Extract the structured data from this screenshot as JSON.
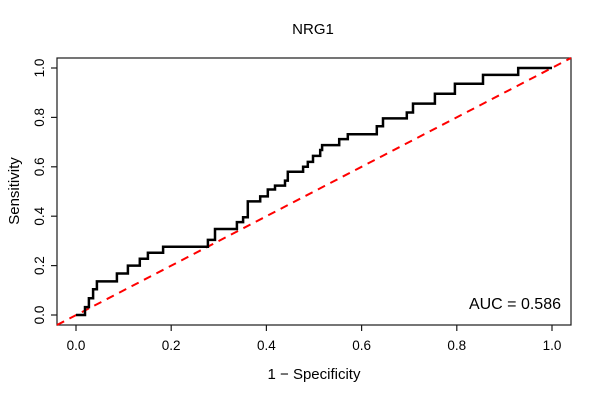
{
  "figure": {
    "background": "#ffffff",
    "frame_color": "#1a1a1a"
  },
  "chart_data": {
    "type": "line",
    "subtype": "roc-step-curve",
    "title": "NRG1",
    "xlabel": "1 − Specificity",
    "ylabel": "Sensitivity",
    "xlim": [
      0,
      1
    ],
    "ylim": [
      0,
      1
    ],
    "grid": false,
    "legend": null,
    "x_ticks": {
      "values": [
        0,
        0.2,
        0.4,
        0.6,
        0.8,
        1.0
      ],
      "labels": [
        "0.0",
        "0.2",
        "0.4",
        "0.6",
        "0.8",
        "1.0"
      ]
    },
    "y_ticks": {
      "values": [
        0,
        0.2,
        0.4,
        0.6,
        0.8,
        1.0
      ],
      "labels": [
        "0.0",
        "0.2",
        "0.4",
        "0.6",
        "0.8",
        "1.0"
      ],
      "rotated": true
    },
    "series": [
      {
        "name": "ROC curve",
        "color": "#000000",
        "stroke_width": 2.5,
        "style": "solid",
        "points": [
          [
            0.0,
            0.0
          ],
          [
            0.019,
            0.0
          ],
          [
            0.019,
            0.032
          ],
          [
            0.027,
            0.032
          ],
          [
            0.027,
            0.068
          ],
          [
            0.036,
            0.068
          ],
          [
            0.036,
            0.104
          ],
          [
            0.044,
            0.104
          ],
          [
            0.044,
            0.136
          ],
          [
            0.086,
            0.136
          ],
          [
            0.086,
            0.168
          ],
          [
            0.109,
            0.168
          ],
          [
            0.109,
            0.2
          ],
          [
            0.134,
            0.2
          ],
          [
            0.134,
            0.228
          ],
          [
            0.151,
            0.228
          ],
          [
            0.151,
            0.252
          ],
          [
            0.183,
            0.252
          ],
          [
            0.183,
            0.276
          ],
          [
            0.277,
            0.276
          ],
          [
            0.277,
            0.304
          ],
          [
            0.292,
            0.304
          ],
          [
            0.292,
            0.348
          ],
          [
            0.338,
            0.348
          ],
          [
            0.338,
            0.376
          ],
          [
            0.351,
            0.376
          ],
          [
            0.351,
            0.396
          ],
          [
            0.361,
            0.396
          ],
          [
            0.361,
            0.46
          ],
          [
            0.387,
            0.46
          ],
          [
            0.387,
            0.48
          ],
          [
            0.403,
            0.48
          ],
          [
            0.403,
            0.508
          ],
          [
            0.418,
            0.508
          ],
          [
            0.418,
            0.524
          ],
          [
            0.439,
            0.524
          ],
          [
            0.439,
            0.544
          ],
          [
            0.445,
            0.544
          ],
          [
            0.445,
            0.58
          ],
          [
            0.477,
            0.58
          ],
          [
            0.477,
            0.6
          ],
          [
            0.487,
            0.6
          ],
          [
            0.487,
            0.62
          ],
          [
            0.498,
            0.62
          ],
          [
            0.498,
            0.644
          ],
          [
            0.513,
            0.644
          ],
          [
            0.513,
            0.668
          ],
          [
            0.517,
            0.668
          ],
          [
            0.517,
            0.688
          ],
          [
            0.553,
            0.688
          ],
          [
            0.553,
            0.712
          ],
          [
            0.571,
            0.712
          ],
          [
            0.571,
            0.732
          ],
          [
            0.632,
            0.732
          ],
          [
            0.632,
            0.764
          ],
          [
            0.645,
            0.764
          ],
          [
            0.645,
            0.796
          ],
          [
            0.695,
            0.796
          ],
          [
            0.695,
            0.82
          ],
          [
            0.708,
            0.82
          ],
          [
            0.708,
            0.856
          ],
          [
            0.754,
            0.856
          ],
          [
            0.754,
            0.896
          ],
          [
            0.796,
            0.896
          ],
          [
            0.796,
            0.936
          ],
          [
            0.855,
            0.936
          ],
          [
            0.855,
            0.972
          ],
          [
            0.929,
            0.972
          ],
          [
            0.929,
            1.0
          ],
          [
            1.0,
            1.0
          ]
        ]
      }
    ],
    "reference_line": {
      "name": "chance diagonal",
      "from": [
        0,
        0
      ],
      "to": [
        1,
        1
      ],
      "color": "#FF0000",
      "style": "dashed",
      "stroke_width": 2
    },
    "annotation": {
      "text": "AUC = 0.586",
      "auc_value": 0.586,
      "position": "bottom-right"
    }
  }
}
